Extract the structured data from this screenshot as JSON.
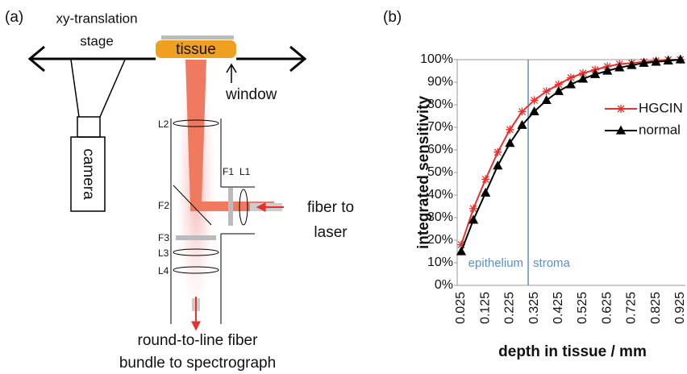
{
  "diagram": {
    "panel_label": "(a)",
    "stage_label_1": "xy-translation",
    "stage_label_2": "stage",
    "tissue": "tissue",
    "window": "window",
    "camera": "camera",
    "L2": "L2",
    "F1": "F1",
    "L1": "L1",
    "F2": "F2",
    "F3": "F3",
    "L3": "L3",
    "L4": "L4",
    "fiber_label_1": "fiber to",
    "fiber_label_2": "laser",
    "output_label_1": "round-to-line fiber",
    "output_label_2": "bundle to spectrograph"
  },
  "chart_data": {
    "type": "line",
    "panel_label": "(b)",
    "y_label": "integrated sensitivity",
    "x_label": "depth in tissue / mm",
    "categories": [
      "0.025",
      null,
      "0.125",
      null,
      "0.225",
      null,
      "0.325",
      null,
      "0.425",
      null,
      "0.525",
      null,
      "0.625",
      null,
      "0.725",
      null,
      "0.825",
      null,
      "0.925"
    ],
    "series": [
      {
        "name": "HGCIN",
        "color": "#e8302a",
        "marker": "asterisk",
        "values": [
          18,
          34,
          47,
          59,
          69,
          77,
          82,
          86,
          89,
          92,
          94,
          95.5,
          97,
          98,
          98.5,
          99,
          99.5,
          100,
          100
        ]
      },
      {
        "name": "normal",
        "color": "#000000",
        "marker": "triangle",
        "values": [
          15,
          29,
          41,
          53,
          63,
          71,
          77,
          82,
          86,
          89,
          91.5,
          93.5,
          95,
          96.5,
          97.5,
          98.5,
          99,
          99.5,
          100
        ]
      }
    ],
    "ylim": [
      0,
      100
    ],
    "yticks": [
      {
        "value": 0,
        "label": "0%"
      },
      {
        "value": 10,
        "label": "10%"
      },
      {
        "value": 20,
        "label": "20%"
      },
      {
        "value": 30,
        "label": "30%"
      },
      {
        "value": 40,
        "label": "40%"
      },
      {
        "value": 50,
        "label": "50%"
      },
      {
        "value": 60,
        "label": "60%"
      },
      {
        "value": 70,
        "label": "70%"
      },
      {
        "value": 80,
        "label": "80%"
      },
      {
        "value": 90,
        "label": "90%"
      },
      {
        "value": 100,
        "label": "100%"
      }
    ],
    "grid": false,
    "legend": "right",
    "boundary": {
      "x": 0.3,
      "color": "#5b8fc9",
      "left_label": "epithelium",
      "right_label": "stroma"
    }
  }
}
